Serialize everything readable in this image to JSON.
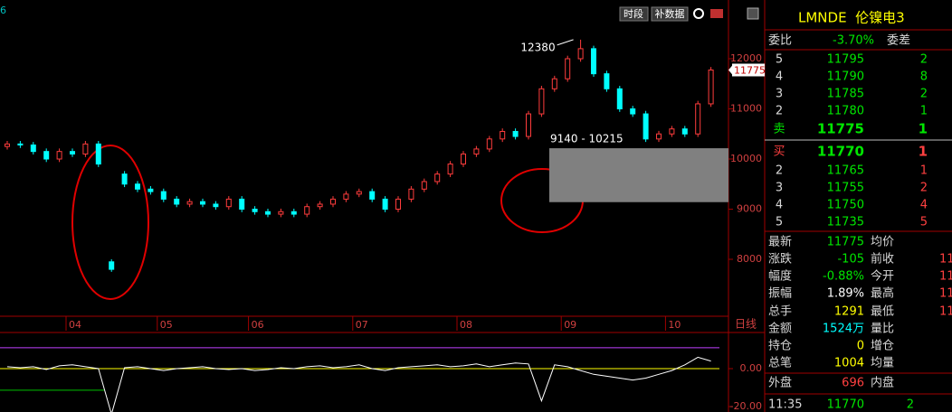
{
  "toolbar": {
    "corner_label": "6",
    "buttons": [
      "时段",
      "补数据"
    ]
  },
  "chart_data": {
    "type": "candlestick",
    "categories": [
      null,
      null,
      null,
      null,
      null,
      "04",
      null,
      null,
      null,
      null,
      null,
      null,
      "05",
      null,
      null,
      null,
      null,
      null,
      null,
      "06",
      null,
      null,
      null,
      null,
      null,
      null,
      null,
      "07",
      null,
      null,
      null,
      null,
      null,
      null,
      null,
      "08",
      null,
      null,
      null,
      null,
      null,
      null,
      null,
      "09",
      null,
      null,
      null,
      null,
      null,
      null,
      null,
      "10",
      null,
      null,
      null
    ],
    "open": [
      10250,
      10300,
      10280,
      10150,
      10000,
      10150,
      10100,
      10300,
      7950,
      9700,
      9500,
      9400,
      9350,
      9200,
      9100,
      9150,
      9100,
      9050,
      9200,
      9000,
      8950,
      8900,
      8950,
      8900,
      9050,
      9100,
      9200,
      9300,
      9350,
      9200,
      9000,
      9200,
      9400,
      9550,
      9700,
      9900,
      10100,
      10200,
      10400,
      10550,
      10450,
      10900,
      11400,
      11600,
      12000,
      12200,
      11700,
      11400,
      11000,
      10900,
      10400,
      10500,
      10600,
      10500,
      11100
    ],
    "high": [
      10360,
      10360,
      10340,
      10210,
      10210,
      10210,
      10360,
      10360,
      8000,
      9760,
      9560,
      9460,
      9410,
      9260,
      9210,
      9210,
      9160,
      9260,
      9260,
      9060,
      9010,
      9010,
      9010,
      9110,
      9160,
      9260,
      9360,
      9410,
      9410,
      9260,
      9260,
      9460,
      9610,
      9760,
      9960,
      10160,
      10260,
      10460,
      10610,
      10610,
      10960,
      11460,
      11660,
      12060,
      12380,
      12260,
      11760,
      11460,
      11060,
      10960,
      10560,
      10660,
      10660,
      11160,
      11835
    ],
    "low": [
      10190,
      10220,
      10090,
      9940,
      9940,
      10040,
      10040,
      9840,
      7750,
      9440,
      9340,
      9290,
      9140,
      9040,
      9040,
      9040,
      8990,
      8990,
      8940,
      8890,
      8840,
      8840,
      8840,
      8840,
      8990,
      9040,
      9140,
      9240,
      9140,
      8940,
      8940,
      9140,
      9340,
      9490,
      9640,
      9840,
      10040,
      10140,
      10340,
      10390,
      10390,
      10840,
      11340,
      11540,
      11940,
      11640,
      11340,
      10940,
      10840,
      10340,
      10340,
      10440,
      10440,
      10440,
      11040
    ],
    "close": [
      10300,
      10280,
      10150,
      10000,
      10150,
      10100,
      10300,
      9900,
      7800,
      9500,
      9400,
      9350,
      9200,
      9100,
      9150,
      9100,
      9050,
      9200,
      9000,
      8950,
      8900,
      8950,
      8900,
      9050,
      9100,
      9200,
      9300,
      9350,
      9200,
      9000,
      9200,
      9400,
      9550,
      9700,
      9900,
      10100,
      10200,
      10400,
      10550,
      10450,
      10900,
      11400,
      11600,
      12000,
      12200,
      11700,
      11400,
      11000,
      10900,
      10400,
      10500,
      10600,
      10500,
      11100,
      11775
    ],
    "up_color": "#ff3c3c",
    "down_color": "#00ffff",
    "ylim": [
      6865,
      13171
    ],
    "yticks": [
      8000,
      9000,
      10000,
      11000,
      12000
    ],
    "period_label": "日线",
    "peak": 12380,
    "last_price": 11775,
    "zone": {
      "label": "9140 - 10215",
      "low": 9140,
      "high": 10215,
      "color": "#808080"
    },
    "indicator": {
      "values": [
        1,
        0.5,
        1,
        -0.5,
        1.5,
        2,
        1,
        0,
        -24,
        0.5,
        1,
        0,
        -1,
        0,
        0.5,
        1,
        0,
        -0.5,
        0,
        -1,
        -0.5,
        0.5,
        0,
        1,
        1.5,
        0.5,
        1,
        2,
        0,
        -1,
        0.5,
        1,
        1.5,
        2,
        1,
        1.5,
        2.5,
        1,
        2,
        3,
        2.5,
        -17,
        2,
        1,
        -1,
        -3,
        -4,
        -5,
        -6,
        -5,
        -3,
        -1,
        2,
        6,
        4
      ],
      "ylim": [
        -22.86,
        19.05
      ],
      "yticks": [
        {
          "value": 0,
          "label": "0.00"
        },
        {
          "value": -20,
          "label": "-20.00"
        }
      ],
      "upper_line": 11,
      "lower_line": -11.4,
      "color": "#ffffff",
      "upper_color": "#c040ff",
      "lower_color": "#00c000",
      "zero_color": "#ffff00"
    }
  },
  "quote": {
    "title": "LMNDE  伦镍电3",
    "ratio": {
      "label": "委比",
      "value": "-3.70%",
      "label2": "委差"
    },
    "asks": [
      {
        "level": "5",
        "price": 11795,
        "size": 2
      },
      {
        "level": "4",
        "price": 11790,
        "size": 8
      },
      {
        "level": "3",
        "price": 11785,
        "size": 2
      },
      {
        "level": "2",
        "price": 11780,
        "size": 1
      },
      {
        "level": "卖",
        "price": 11775,
        "size": 1
      }
    ],
    "bids": [
      {
        "level": "买",
        "price": 11770,
        "size": 1
      },
      {
        "level": "2",
        "price": 11765,
        "size": 1
      },
      {
        "level": "3",
        "price": 11755,
        "size": 2
      },
      {
        "level": "4",
        "price": 11750,
        "size": 4
      },
      {
        "level": "5",
        "price": 11735,
        "size": 5
      }
    ],
    "stats": [
      {
        "label": "最新",
        "value": 11775,
        "color": "#00e600",
        "label2": "均价"
      },
      {
        "label": "涨跌",
        "value": -105,
        "color": "#00e600",
        "label2": "前收",
        "value2": "11"
      },
      {
        "label": "幅度",
        "value": "-0.88%",
        "color": "#00e600",
        "label2": "今开",
        "value2": "11"
      },
      {
        "label": "振幅",
        "value": "1.89%",
        "color": "#ffffff",
        "label2": "最高",
        "value2": "11"
      },
      {
        "label": "总手",
        "value": 1291,
        "color": "#ffff00",
        "label2": "最低",
        "value2": "11"
      },
      {
        "label": "金额",
        "value": "1524万",
        "color": "#00ffff",
        "label2": "量比"
      },
      {
        "label": "持仓",
        "value": 0,
        "color": "#ffff00",
        "label2": "增仓"
      },
      {
        "label": "总笔",
        "value": 1004,
        "color": "#ffff00",
        "label2": "均量"
      }
    ],
    "outer": {
      "label": "外盘",
      "value": 696,
      "label2": "内盘"
    },
    "tick": {
      "time": "11:35",
      "price": 11770,
      "size": 2
    }
  }
}
